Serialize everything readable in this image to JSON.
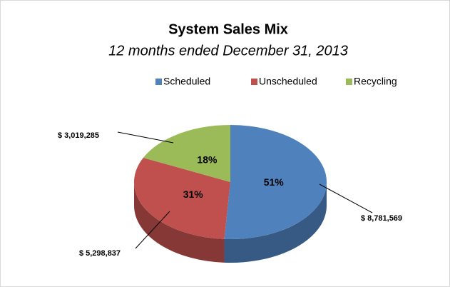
{
  "chart_data": {
    "type": "pie",
    "title": "System Sales Mix",
    "subtitle": "12 months ended December 31, 2013",
    "categories": [
      "Scheduled",
      "Unscheduled",
      "Recycling"
    ],
    "values": [
      51,
      31,
      18
    ],
    "value_labels": [
      "51%",
      "31%",
      "18%"
    ],
    "amounts": [
      8781569,
      5298837,
      3019285
    ],
    "amount_labels": [
      "$ 8,781,569",
      "$ 5,298,837",
      "$ 3,019,285"
    ],
    "colors": [
      "#4f81bd",
      "#c0504d",
      "#9bbb59"
    ],
    "legend": "top"
  }
}
